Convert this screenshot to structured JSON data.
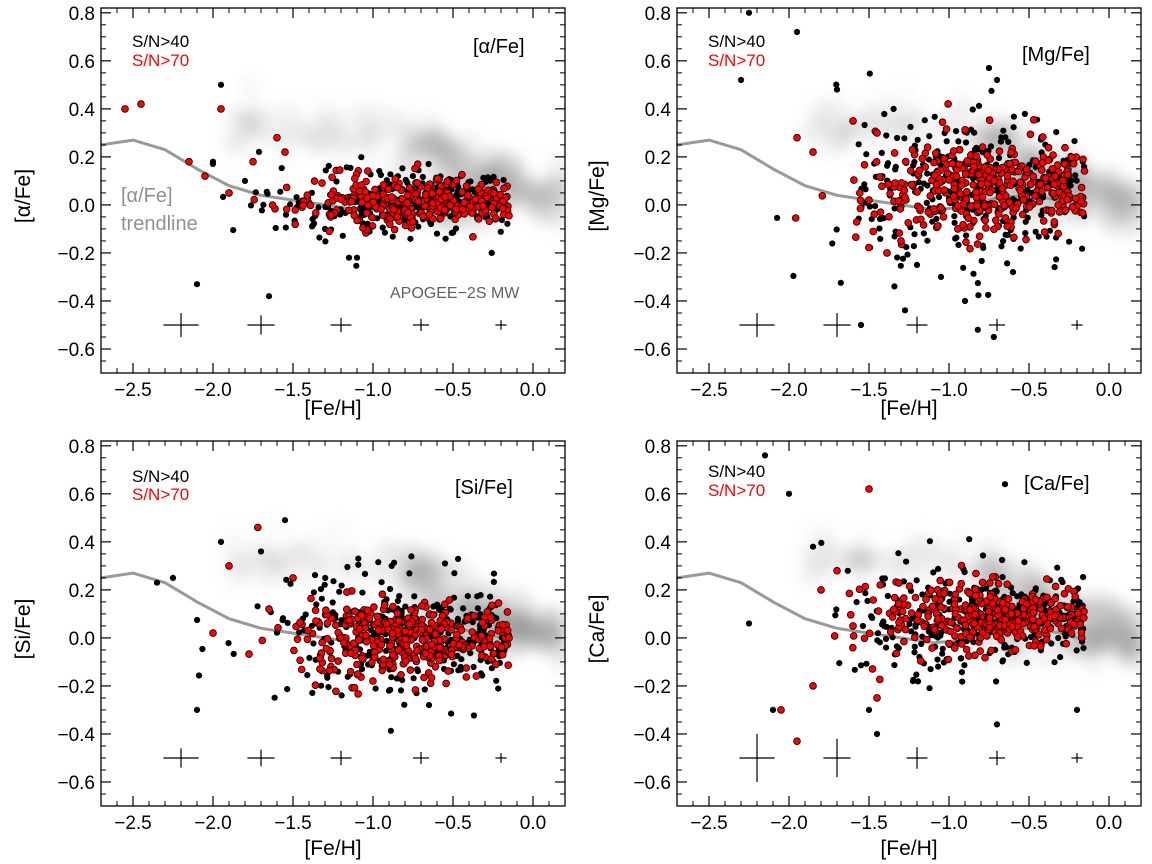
{
  "chart_data": [
    {
      "type": "scatter",
      "title": "[α/Fe]",
      "xlabel": "[Fe/H]",
      "ylabel": "[α/Fe]",
      "xlim": [
        -2.7,
        0.2
      ],
      "ylim": [
        -0.7,
        0.82
      ],
      "xticks": [
        -2.5,
        -2.0,
        -1.5,
        -1.0,
        -0.5,
        0.0
      ],
      "xtick_labels": [
        "−2.5",
        "−2.0",
        "−1.5",
        "−1.0",
        "−0.5",
        "0.0"
      ],
      "yticks": [
        -0.6,
        -0.4,
        -0.2,
        0.0,
        0.2,
        0.4,
        0.6,
        0.8
      ],
      "ytick_labels": [
        "−0.6",
        "−0.4",
        "−0.2",
        "0.0",
        "0.2",
        "0.4",
        "0.6",
        "0.8"
      ],
      "legend": [
        "S/N>40",
        "S/N>70"
      ],
      "annotations": [
        "[α/Fe]",
        "trendline",
        "APOGEE−2S MW"
      ],
      "series": [
        {
          "name": "S/N>40",
          "color": "#000000",
          "cluster": {
            "x_center": -0.8,
            "x_sd": 0.42,
            "y_center": 0.01,
            "y_sd": 0.06,
            "count": 260
          },
          "outliers": [
            [
              -2.1,
              -0.33
            ],
            [
              -1.95,
              0.5
            ],
            [
              -1.65,
              -0.38
            ],
            [
              -1.1,
              -0.22
            ],
            [
              -1.15,
              -0.22
            ],
            [
              -2.0,
              0.18
            ],
            [
              -1.8,
              0.1
            ],
            [
              -0.45,
              0.12
            ],
            [
              -0.6,
              -0.12
            ],
            [
              -1.3,
              -0.1
            ]
          ]
        },
        {
          "name": "S/N>70",
          "color": "#ff0000",
          "cluster": {
            "x_center": -0.75,
            "x_sd": 0.38,
            "y_center": 0.01,
            "y_sd": 0.045,
            "count": 340
          },
          "outliers": [
            [
              -2.55,
              0.4
            ],
            [
              -2.45,
              0.42
            ],
            [
              -2.15,
              0.18
            ],
            [
              -1.95,
              0.4
            ],
            [
              -1.75,
              0.18
            ],
            [
              -1.6,
              0.28
            ],
            [
              -1.9,
              0.05
            ],
            [
              -2.05,
              0.12
            ],
            [
              -1.55,
              0.22
            ]
          ]
        },
        {
          "name": "trendline",
          "color": "#999999",
          "x": [
            -2.7,
            -2.5,
            -2.3,
            -2.1,
            -1.9,
            -1.7,
            -1.5,
            -1.3,
            -1.1,
            -0.9,
            -0.7,
            -0.5,
            -0.3,
            -0.2
          ],
          "y": [
            0.25,
            0.27,
            0.23,
            0.15,
            0.08,
            0.04,
            0.02,
            0.0,
            -0.02,
            -0.01,
            0.03,
            0.04,
            0.02,
            0.0
          ]
        }
      ],
      "error_crosses": [
        {
          "x": -2.2,
          "y": -0.5,
          "xerr": 0.11,
          "yerr": 0.05
        },
        {
          "x": -1.7,
          "y": -0.5,
          "xerr": 0.085,
          "yerr": 0.04
        },
        {
          "x": -1.2,
          "y": -0.5,
          "xerr": 0.065,
          "yerr": 0.03
        },
        {
          "x": -0.7,
          "y": -0.5,
          "xerr": 0.05,
          "yerr": 0.025
        },
        {
          "x": -0.2,
          "y": -0.5,
          "xerr": 0.035,
          "yerr": 0.02
        }
      ],
      "background": {
        "name": "APOGEE−2S MW",
        "color": "#808080"
      }
    },
    {
      "type": "scatter",
      "title": "[Mg/Fe]",
      "xlabel": "[Fe/H]",
      "ylabel": "[Mg/Fe]",
      "xlim": [
        -2.7,
        0.2
      ],
      "ylim": [
        -0.7,
        0.82
      ],
      "xticks": [
        -2.5,
        -2.0,
        -1.5,
        -1.0,
        -0.5,
        0.0
      ],
      "xtick_labels": [
        "−2.5",
        "−2.0",
        "−1.5",
        "−1.0",
        "−0.5",
        "0.0"
      ],
      "yticks": [
        -0.6,
        -0.4,
        -0.2,
        0.0,
        0.2,
        0.4,
        0.6,
        0.8
      ],
      "ytick_labels": [
        "−0.6",
        "−0.4",
        "−0.2",
        "0.0",
        "0.2",
        "0.4",
        "0.6",
        "0.8"
      ],
      "legend": [
        "S/N>40",
        "S/N>70"
      ],
      "annotations": [],
      "series": [
        {
          "name": "S/N>40",
          "color": "#000000",
          "cluster": {
            "x_center": -0.85,
            "x_sd": 0.4,
            "y_center": 0.05,
            "y_sd": 0.14,
            "count": 300
          },
          "outliers": [
            [
              -2.25,
              0.8
            ],
            [
              -1.95,
              0.72
            ],
            [
              -2.3,
              0.52
            ],
            [
              -1.7,
              0.48
            ],
            [
              -1.55,
              -0.5
            ],
            [
              -0.9,
              -0.4
            ],
            [
              -0.82,
              -0.52
            ],
            [
              -0.72,
              -0.55
            ],
            [
              -1.05,
              -0.3
            ],
            [
              -0.75,
              0.57
            ],
            [
              -0.7,
              0.52
            ],
            [
              -1.2,
              -0.25
            ],
            [
              -0.6,
              -0.28
            ]
          ]
        },
        {
          "name": "S/N>70",
          "color": "#ff0000",
          "cluster": {
            "x_center": -0.75,
            "x_sd": 0.38,
            "y_center": 0.07,
            "y_sd": 0.09,
            "count": 380
          },
          "outliers": [
            [
              -1.95,
              0.28
            ],
            [
              -1.85,
              0.22
            ],
            [
              -1.6,
              0.35
            ],
            [
              -1.45,
              0.3
            ],
            [
              -1.3,
              -0.15
            ],
            [
              -1.5,
              0.02
            ]
          ]
        },
        {
          "name": "trendline",
          "color": "#999999",
          "x": [
            -2.7,
            -2.5,
            -2.3,
            -2.1,
            -1.9,
            -1.7,
            -1.5,
            -1.3,
            -1.1,
            -0.9,
            -0.7,
            -0.5,
            -0.3,
            -0.2
          ],
          "y": [
            0.25,
            0.27,
            0.23,
            0.15,
            0.08,
            0.04,
            0.02,
            0.0,
            -0.02,
            -0.01,
            0.03,
            0.04,
            0.02,
            0.0
          ]
        }
      ],
      "error_crosses": [
        {
          "x": -2.2,
          "y": -0.5,
          "xerr": 0.11,
          "yerr": 0.05
        },
        {
          "x": -1.7,
          "y": -0.5,
          "xerr": 0.085,
          "yerr": 0.05
        },
        {
          "x": -1.2,
          "y": -0.5,
          "xerr": 0.065,
          "yerr": 0.035
        },
        {
          "x": -0.7,
          "y": -0.5,
          "xerr": 0.05,
          "yerr": 0.025
        },
        {
          "x": -0.2,
          "y": -0.5,
          "xerr": 0.035,
          "yerr": 0.02
        }
      ],
      "background": {
        "name": "APOGEE−2S MW",
        "color": "#808080"
      }
    },
    {
      "type": "scatter",
      "title": "[Si/Fe]",
      "xlabel": "[Fe/H]",
      "ylabel": "[Si/Fe]",
      "xlim": [
        -2.7,
        0.2
      ],
      "ylim": [
        -0.7,
        0.82
      ],
      "xticks": [
        -2.5,
        -2.0,
        -1.5,
        -1.0,
        -0.5,
        0.0
      ],
      "xtick_labels": [
        "−2.5",
        "−2.0",
        "−1.5",
        "−1.0",
        "−0.5",
        "0.0"
      ],
      "yticks": [
        -0.6,
        -0.4,
        -0.2,
        0.0,
        0.2,
        0.4,
        0.6,
        0.8
      ],
      "ytick_labels": [
        "−0.6",
        "−0.4",
        "−0.2",
        "0.0",
        "0.2",
        "0.4",
        "0.6",
        "0.8"
      ],
      "legend": [
        "S/N>40",
        "S/N>70"
      ],
      "annotations": [],
      "series": [
        {
          "name": "S/N>40",
          "color": "#000000",
          "cluster": {
            "x_center": -0.8,
            "x_sd": 0.42,
            "y_center": 0.02,
            "y_sd": 0.11,
            "count": 300
          },
          "outliers": [
            [
              -2.1,
              -0.3
            ],
            [
              -1.55,
              0.49
            ],
            [
              -1.95,
              0.4
            ],
            [
              -1.7,
              0.36
            ],
            [
              -2.35,
              0.23
            ],
            [
              -2.25,
              0.25
            ],
            [
              -0.55,
              0.31
            ],
            [
              -0.9,
              -0.22
            ],
            [
              -0.65,
              -0.28
            ]
          ]
        },
        {
          "name": "S/N>70",
          "color": "#ff0000",
          "cluster": {
            "x_center": -0.75,
            "x_sd": 0.37,
            "y_center": -0.01,
            "y_sd": 0.07,
            "count": 380
          },
          "outliers": [
            [
              -1.72,
              0.46
            ],
            [
              -1.9,
              0.3
            ],
            [
              -1.65,
              0.12
            ],
            [
              -2.0,
              0.02
            ],
            [
              -1.5,
              0.25
            ],
            [
              -0.15,
              0.0
            ]
          ]
        },
        {
          "name": "trendline",
          "color": "#999999",
          "x": [
            -2.7,
            -2.5,
            -2.3,
            -2.1,
            -1.9,
            -1.7,
            -1.5,
            -1.3,
            -1.1,
            -0.9,
            -0.7,
            -0.5,
            -0.3,
            -0.2
          ],
          "y": [
            0.25,
            0.27,
            0.23,
            0.15,
            0.08,
            0.04,
            0.02,
            0.0,
            -0.02,
            -0.01,
            0.03,
            0.04,
            0.02,
            0.0
          ]
        }
      ],
      "error_crosses": [
        {
          "x": -2.2,
          "y": -0.5,
          "xerr": 0.11,
          "yerr": 0.04
        },
        {
          "x": -1.7,
          "y": -0.5,
          "xerr": 0.085,
          "yerr": 0.035
        },
        {
          "x": -1.2,
          "y": -0.5,
          "xerr": 0.065,
          "yerr": 0.03
        },
        {
          "x": -0.7,
          "y": -0.5,
          "xerr": 0.05,
          "yerr": 0.025
        },
        {
          "x": -0.2,
          "y": -0.5,
          "xerr": 0.035,
          "yerr": 0.02
        }
      ],
      "background": {
        "name": "APOGEE−2S MW",
        "color": "#808080"
      }
    },
    {
      "type": "scatter",
      "title": "[Ca/Fe]",
      "xlabel": "[Fe/H]",
      "ylabel": "[Ca/Fe]",
      "xlim": [
        -2.7,
        0.2
      ],
      "ylim": [
        -0.7,
        0.82
      ],
      "xticks": [
        -2.5,
        -2.0,
        -1.5,
        -1.0,
        -0.5,
        0.0
      ],
      "xtick_labels": [
        "−2.5",
        "−2.0",
        "−1.5",
        "−1.0",
        "−0.5",
        "0.0"
      ],
      "yticks": [
        -0.6,
        -0.4,
        -0.2,
        0.0,
        0.2,
        0.4,
        0.6,
        0.8
      ],
      "ytick_labels": [
        "−0.6",
        "−0.4",
        "−0.2",
        "0.0",
        "0.2",
        "0.4",
        "0.6",
        "0.8"
      ],
      "legend": [
        "S/N>40",
        "S/N>70"
      ],
      "annotations": [],
      "series": [
        {
          "name": "S/N>40",
          "color": "#000000",
          "cluster": {
            "x_center": -0.8,
            "x_sd": 0.42,
            "y_center": 0.08,
            "y_sd": 0.1,
            "count": 300
          },
          "outliers": [
            [
              -2.15,
              0.76
            ],
            [
              -2.0,
              0.6
            ],
            [
              -0.65,
              0.64
            ],
            [
              -2.1,
              -0.3
            ],
            [
              -2.25,
              0.06
            ],
            [
              -1.45,
              -0.4
            ],
            [
              -1.5,
              -0.3
            ],
            [
              -0.7,
              -0.36
            ],
            [
              -0.2,
              -0.3
            ],
            [
              -1.85,
              0.38
            ]
          ]
        },
        {
          "name": "S/N>70",
          "color": "#ff0000",
          "cluster": {
            "x_center": -0.75,
            "x_sd": 0.36,
            "y_center": 0.09,
            "y_sd": 0.06,
            "count": 380
          },
          "outliers": [
            [
              -1.5,
              0.62
            ],
            [
              -1.95,
              -0.43
            ],
            [
              -2.05,
              -0.3
            ],
            [
              -1.8,
              0.2
            ],
            [
              -1.7,
              0.28
            ],
            [
              -1.85,
              -0.2
            ],
            [
              -1.45,
              -0.25
            ],
            [
              -1.6,
              0.05
            ]
          ]
        },
        {
          "name": "trendline",
          "color": "#999999",
          "x": [
            -2.7,
            -2.5,
            -2.3,
            -2.1,
            -1.9,
            -1.7,
            -1.5,
            -1.3,
            -1.1,
            -0.9,
            -0.7,
            -0.5,
            -0.3,
            -0.2
          ],
          "y": [
            0.25,
            0.27,
            0.23,
            0.15,
            0.08,
            0.04,
            0.02,
            0.0,
            -0.02,
            -0.01,
            0.03,
            0.04,
            0.02,
            0.0
          ]
        }
      ],
      "error_crosses": [
        {
          "x": -2.2,
          "y": -0.5,
          "xerr": 0.11,
          "yerr": 0.1
        },
        {
          "x": -1.7,
          "y": -0.5,
          "xerr": 0.085,
          "yerr": 0.08
        },
        {
          "x": -1.2,
          "y": -0.5,
          "xerr": 0.065,
          "yerr": 0.045
        },
        {
          "x": -0.7,
          "y": -0.5,
          "xerr": 0.05,
          "yerr": 0.03
        },
        {
          "x": -0.2,
          "y": -0.5,
          "xerr": 0.035,
          "yerr": 0.02
        }
      ],
      "background": {
        "name": "APOGEE−2S MW",
        "color": "#808080"
      }
    }
  ]
}
